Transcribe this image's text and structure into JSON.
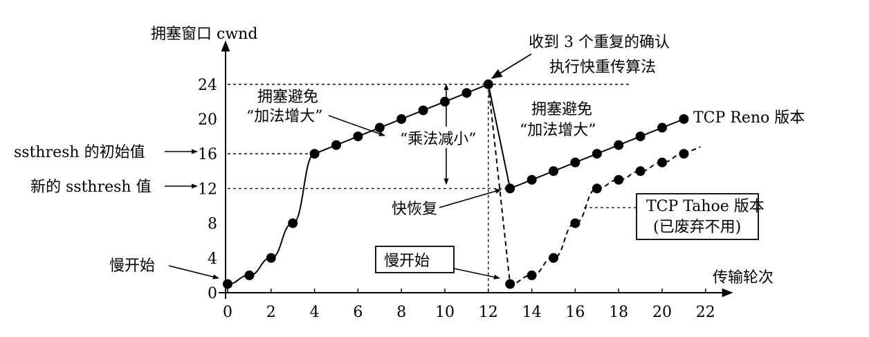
{
  "chart_data": {
    "type": "line",
    "x": [
      0,
      1,
      2,
      3,
      4,
      5,
      6,
      7,
      8,
      9,
      10,
      11,
      12,
      13,
      14,
      15,
      16,
      17,
      18,
      19,
      20,
      21
    ],
    "xlabel": "传输轮次",
    "ylabel": "拥塞窗口 cwnd",
    "xlim": [
      0,
      23
    ],
    "ylim": [
      0,
      26
    ],
    "xticks": [
      0,
      2,
      4,
      6,
      8,
      10,
      12,
      14,
      16,
      18,
      20,
      22
    ],
    "yticks": [
      0,
      4,
      8,
      12,
      16,
      20,
      24
    ],
    "grid": false,
    "series": [
      {
        "name": "TCP Reno 版本",
        "points": [
          [
            0,
            1
          ],
          [
            1,
            2
          ],
          [
            2,
            4
          ],
          [
            3,
            8
          ],
          [
            4,
            16
          ],
          [
            5,
            17
          ],
          [
            6,
            18
          ],
          [
            7,
            19
          ],
          [
            8,
            20
          ],
          [
            9,
            21
          ],
          [
            10,
            22
          ],
          [
            11,
            23
          ],
          [
            12,
            24
          ],
          [
            13,
            12
          ],
          [
            14,
            13
          ],
          [
            15,
            14
          ],
          [
            16,
            15
          ],
          [
            17,
            16
          ],
          [
            18,
            17
          ],
          [
            19,
            18
          ],
          [
            20,
            19
          ],
          [
            21,
            20
          ]
        ],
        "style": "solid"
      },
      {
        "name": "TCP Tahoe 版本 (已废弃不用)",
        "points": [
          [
            12,
            24
          ],
          [
            13,
            1
          ],
          [
            14,
            2
          ],
          [
            15,
            4
          ],
          [
            16,
            8
          ],
          [
            17,
            12
          ],
          [
            18,
            13
          ],
          [
            19,
            14
          ],
          [
            20,
            15
          ],
          [
            21,
            16
          ]
        ],
        "style": "dashed"
      }
    ],
    "y_axis_markers": [
      {
        "label": "ssthresh 的初始值",
        "y": 16
      },
      {
        "label": "新的 ssthresh 值",
        "y": 12
      }
    ],
    "annotations": {
      "slow_start_left": "慢开始",
      "slow_start_boxed": "慢开始",
      "three_dup_acks_line1": "收到 3 个重复的确认",
      "three_dup_acks_line2": "执行快重传算法",
      "cong_avoid_1_line1": "拥塞避免",
      "cong_avoid_1_line2": "“加法增大”",
      "cong_avoid_2_line1": "拥塞避免",
      "cong_avoid_2_line2": "“加法增大”",
      "mult_decrease": "“乘法减小”",
      "fast_recovery": "快恢复",
      "reno_label": "TCP Reno 版本",
      "tahoe_line1": "TCP Tahoe 版本",
      "tahoe_line2": "(已废弃不用)"
    }
  }
}
